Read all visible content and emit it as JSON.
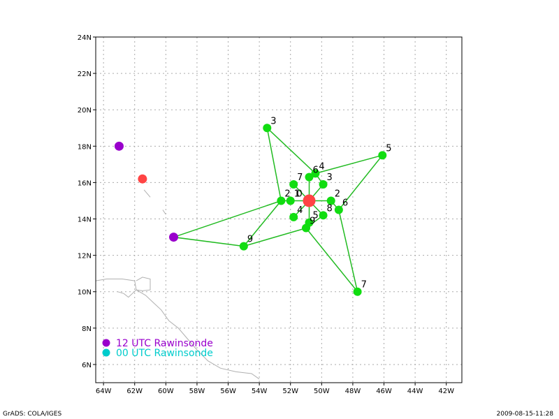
{
  "map": {
    "lon_range": [
      -64.5,
      -41.0
    ],
    "lat_range": [
      5.0,
      24.0
    ],
    "lon_ticks": [
      -64,
      -62,
      -60,
      -58,
      -56,
      -54,
      -52,
      -50,
      -48,
      -46,
      -44,
      -42
    ],
    "lon_tick_labels": [
      "64W",
      "62W",
      "60W",
      "58W",
      "56W",
      "54W",
      "52W",
      "50W",
      "48W",
      "46W",
      "44W",
      "42W"
    ],
    "lat_ticks": [
      6,
      8,
      10,
      12,
      14,
      16,
      18,
      20,
      22,
      24
    ],
    "lat_tick_labels": [
      "6N",
      "8N",
      "10N",
      "12N",
      "14N",
      "16N",
      "18N",
      "20N",
      "22N",
      "24N"
    ],
    "grid": true,
    "colors": {
      "frame": "#000000",
      "grid": "#aaaaaa",
      "coast": "#b0b0b0",
      "track": "#22bb22",
      "point": "#11dd11",
      "center": "#ff4444",
      "raob12": "#9900cc",
      "raob00": "#00cccc"
    },
    "center": {
      "lon": -50.8,
      "lat": 15.0
    },
    "points": [
      {
        "lon": -53.5,
        "lat": 19.0,
        "label": "3"
      },
      {
        "lon": -46.1,
        "lat": 17.5,
        "label": "5"
      },
      {
        "lon": -47.7,
        "lat": 10.0,
        "label": "7"
      },
      {
        "lon": -55.0,
        "lat": 12.5,
        "label": "9"
      },
      {
        "lon": -52.6,
        "lat": 15.0,
        "label": "2"
      },
      {
        "lon": -52.0,
        "lat": 15.0,
        "label": "1"
      },
      {
        "lon": -51.8,
        "lat": 15.9,
        "label": "7"
      },
      {
        "lon": -50.8,
        "lat": 16.3,
        "label": "6"
      },
      {
        "lon": -50.4,
        "lat": 16.5,
        "label": "4"
      },
      {
        "lon": -49.9,
        "lat": 15.9,
        "label": "3"
      },
      {
        "lon": -49.4,
        "lat": 15.0,
        "label": "2"
      },
      {
        "lon": -48.9,
        "lat": 14.5,
        "label": "6"
      },
      {
        "lon": -49.9,
        "lat": 14.2,
        "label": "8"
      },
      {
        "lon": -51.8,
        "lat": 14.1,
        "label": "4"
      },
      {
        "lon": -50.8,
        "lat": 13.8,
        "label": "5"
      },
      {
        "lon": -51.0,
        "lat": 13.5,
        "label": "9"
      }
    ],
    "track": [
      [
        [
          -53.5,
          19.0
        ],
        [
          -50.4,
          16.5
        ],
        [
          -46.1,
          17.5
        ],
        [
          -48.9,
          14.5
        ],
        [
          -47.7,
          10.0
        ],
        [
          -51.0,
          13.5
        ],
        [
          -55.0,
          12.5
        ],
        [
          -52.6,
          15.0
        ],
        [
          -53.5,
          19.0
        ]
      ],
      [
        [
          -59.5,
          13.0
        ],
        [
          -52.6,
          15.0
        ]
      ],
      [
        [
          -59.5,
          13.0
        ],
        [
          -55.0,
          12.5
        ]
      ],
      [
        [
          -52.6,
          15.0
        ],
        [
          -52.0,
          15.0
        ],
        [
          -50.8,
          15.0
        ],
        [
          -49.4,
          15.0
        ],
        [
          -48.9,
          14.5
        ]
      ],
      [
        [
          -50.8,
          16.3
        ],
        [
          -50.4,
          16.5
        ],
        [
          -49.9,
          15.9
        ]
      ],
      [
        [
          -50.8,
          16.3
        ],
        [
          -50.8,
          13.8
        ]
      ],
      [
        [
          -51.8,
          15.9
        ],
        [
          -50.8,
          15.0
        ],
        [
          -49.9,
          14.2
        ]
      ],
      [
        [
          -49.9,
          15.9
        ],
        [
          -50.8,
          15.0
        ],
        [
          -51.8,
          14.1
        ]
      ],
      [
        [
          -51.0,
          13.5
        ],
        [
          -49.9,
          14.2
        ]
      ]
    ],
    "raob_12utc": [
      {
        "lon": -63.0,
        "lat": 18.0
      },
      {
        "lon": -59.5,
        "lat": 13.0
      }
    ],
    "raob_00utc_extra": [
      {
        "lon": -61.5,
        "lat": 16.2
      }
    ],
    "coastlines": [
      [
        [
          -64.5,
          10.6
        ],
        [
          -63.8,
          10.7
        ],
        [
          -62.8,
          10.7
        ],
        [
          -62.0,
          10.6
        ],
        [
          -61.9,
          10.1
        ],
        [
          -62.4,
          9.7
        ],
        [
          -62.7,
          9.9
        ],
        [
          -63.1,
          10.0
        ]
      ],
      [
        [
          -61.9,
          10.6
        ],
        [
          -61.5,
          10.8
        ],
        [
          -61.0,
          10.7
        ],
        [
          -61.0,
          10.1
        ],
        [
          -61.5,
          10.05
        ],
        [
          -61.9,
          10.1
        ]
      ],
      [
        [
          -61.9,
          10.1
        ],
        [
          -61.3,
          9.8
        ],
        [
          -60.8,
          9.4
        ],
        [
          -60.3,
          9.0
        ],
        [
          -59.8,
          8.4
        ],
        [
          -59.2,
          8.0
        ],
        [
          -58.6,
          7.4
        ],
        [
          -58.0,
          6.8
        ],
        [
          -57.3,
          6.2
        ],
        [
          -56.5,
          5.8
        ],
        [
          -55.5,
          5.6
        ],
        [
          -54.5,
          5.5
        ],
        [
          -54.0,
          5.2
        ]
      ],
      [
        [
          -61.4,
          15.6
        ],
        [
          -61.0,
          15.2
        ]
      ],
      [
        [
          -60.2,
          14.5
        ],
        [
          -60.0,
          14.25
        ]
      ]
    ]
  },
  "legend": [
    {
      "label": "12 UTC Rawinsonde",
      "color": "#9900cc"
    },
    {
      "label": "00 UTC Rawinsonde",
      "color": "#00cccc"
    }
  ],
  "footer": {
    "left": "GrADS: COLA/IGES",
    "right": "2009-08-15-11:28"
  }
}
